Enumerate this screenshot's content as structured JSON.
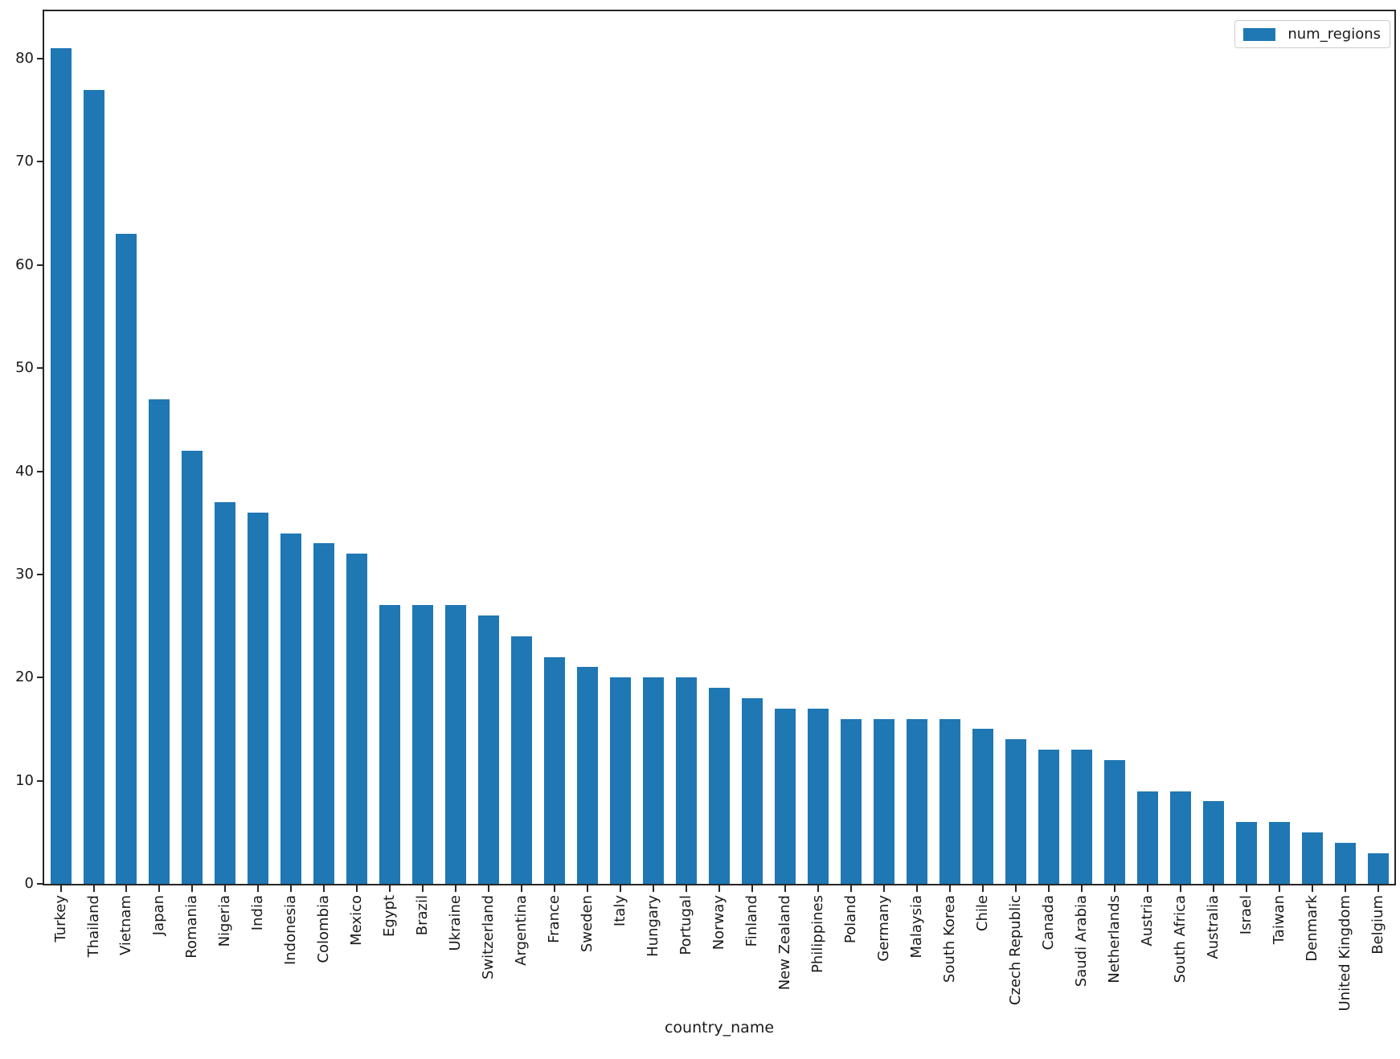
{
  "chart_data": {
    "type": "bar",
    "title": "",
    "xlabel": "country_name",
    "ylabel": "",
    "categories": [
      "Turkey",
      "Thailand",
      "Vietnam",
      "Japan",
      "Romania",
      "Nigeria",
      "India",
      "Indonesia",
      "Colombia",
      "Mexico",
      "Egypt",
      "Brazil",
      "Ukraine",
      "Switzerland",
      "Argentina",
      "France",
      "Sweden",
      "Italy",
      "Hungary",
      "Portugal",
      "Norway",
      "Finland",
      "New Zealand",
      "Philippines",
      "Poland",
      "Germany",
      "Malaysia",
      "South Korea",
      "Chile",
      "Czech Republic",
      "Canada",
      "Saudi Arabia",
      "Netherlands",
      "Austria",
      "South Africa",
      "Australia",
      "Israel",
      "Taiwan",
      "Denmark",
      "United Kingdom",
      "Belgium"
    ],
    "series": [
      {
        "name": "num_regions",
        "values": [
          81,
          77,
          63,
          47,
          42,
          37,
          36,
          34,
          33,
          32,
          27,
          27,
          27,
          26,
          24,
          22,
          21,
          20,
          20,
          20,
          19,
          18,
          17,
          17,
          16,
          16,
          16,
          16,
          15,
          14,
          13,
          13,
          12,
          9,
          9,
          8,
          6,
          6,
          5,
          4,
          3
        ]
      }
    ],
    "ylim": [
      0,
      84.6
    ],
    "yticks": [
      0,
      10,
      20,
      30,
      40,
      50,
      60,
      70,
      80
    ],
    "xticklabel_rotation": 90,
    "grid": false,
    "legend": {
      "position": "upper-right",
      "entries": [
        {
          "label": "num_regions",
          "color": "#1f77b4"
        }
      ]
    }
  },
  "colors": {
    "bar": "#1f77b4",
    "text": "#1a1a1a",
    "frame": "#262626",
    "legend_border": "#cccccc",
    "background": "#ffffff"
  }
}
